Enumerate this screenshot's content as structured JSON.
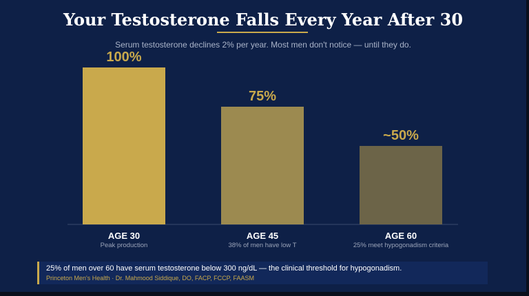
{
  "title": "Your Testosterone Falls Every Year After 30",
  "subtitle": "Serum testosterone declines 2% per year. Most men don't notice — until they do.",
  "chart_data": {
    "type": "bar",
    "categories": [
      "AGE 30",
      "AGE 45",
      "AGE 60"
    ],
    "category_sublabels": [
      "Peak production",
      "38% of men have low T",
      "25% meet hypogonadism criteria"
    ],
    "values": [
      100,
      75,
      50
    ],
    "value_labels": [
      "100%",
      "75%",
      "~50%"
    ],
    "bar_colors": [
      "#c9a94c",
      "#9c8a50",
      "#6c6448"
    ],
    "ylim": [
      0,
      100
    ],
    "grid": false,
    "legend": "none"
  },
  "footer": {
    "main": "25% of men over 60 have serum testosterone below 300 ng/dL — the clinical threshold for hypogonadism.",
    "credit": "Princeton Men's Health · Dr. Mahmood Siddique, DO, FACP, FCCP, FAASM"
  },
  "colors": {
    "background": "#0e2047",
    "accent": "#c9a94c",
    "footer_bg": "#12285a"
  }
}
